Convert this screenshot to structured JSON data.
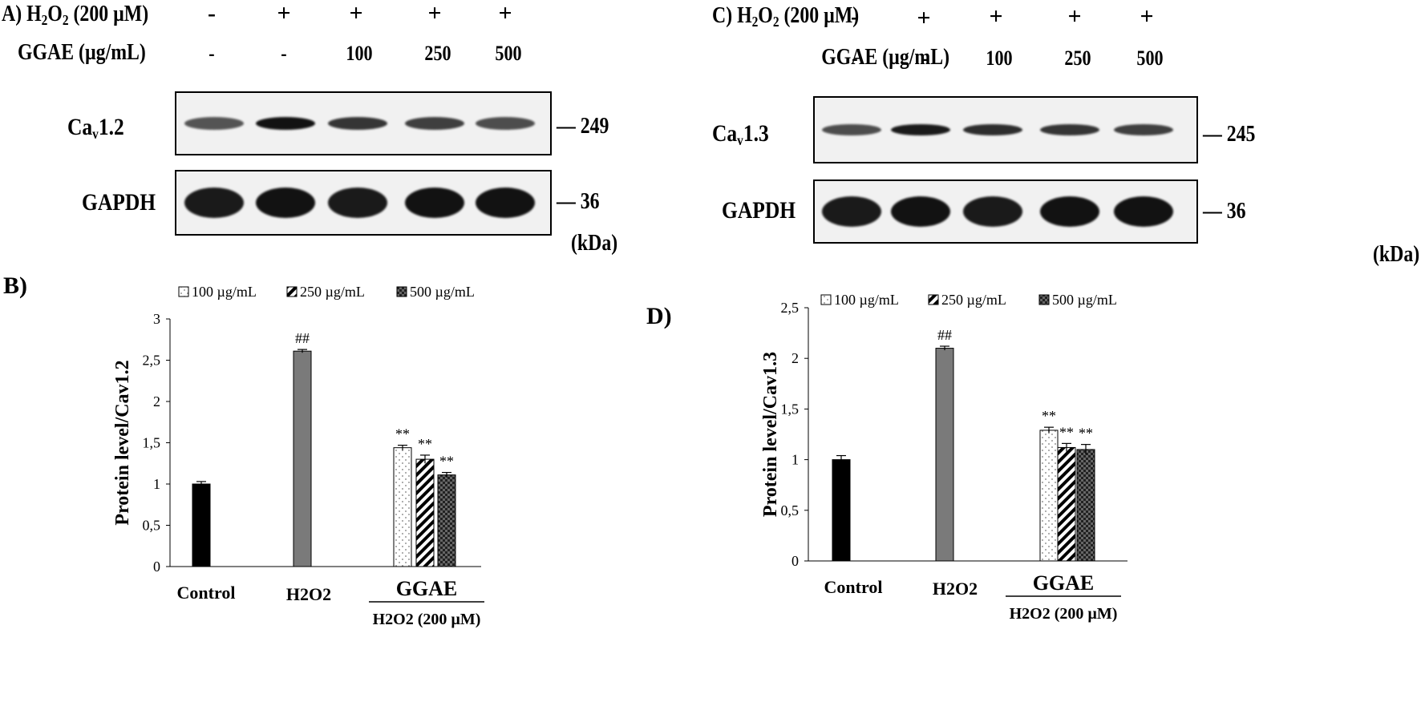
{
  "panels": [
    {
      "blot": {
        "panel_label": "A)",
        "treatment_label": "H2O2 (200 µM)",
        "h2o2_signs": [
          "-",
          "+",
          "+",
          "+",
          "+"
        ],
        "extract_label": "GGAE (µg/mL)",
        "extract_values": [
          "-",
          "-",
          "100",
          "250",
          "500"
        ],
        "target_label": "Cav1.2",
        "target_mw": "249",
        "loading_label": "GAPDH",
        "loading_mw": "36",
        "unit": "(kDa)",
        "target_band_intensity": [
          0.55,
          0.95,
          0.75,
          0.7,
          0.6
        ],
        "loading_band_intensity": [
          0.9,
          0.95,
          0.9,
          0.95,
          0.95
        ]
      },
      "chart": {
        "panel_label": "B)",
        "legend": [
          "100 µg/mL",
          "250 µg/mL",
          "500 µg/mL"
        ],
        "group_label": "GGAE",
        "group_sublabel": "H2O2 (200 µM)"
      }
    },
    {
      "blot": {
        "panel_label": "C)",
        "treatment_label": "H2O2 (200 µM)",
        "h2o2_signs": [
          "-",
          "+",
          "+",
          "+",
          "+"
        ],
        "extract_label": "GGAE (µg/mL)",
        "extract_values": [
          "-",
          "-",
          "100",
          "250",
          "500"
        ],
        "target_label": "Cav1.3",
        "target_mw": "245",
        "loading_label": "GAPDH",
        "loading_mw": "36",
        "unit": "(kDa)",
        "target_band_intensity": [
          0.6,
          0.9,
          0.8,
          0.75,
          0.7
        ],
        "loading_band_intensity": [
          0.9,
          0.95,
          0.9,
          0.95,
          0.95
        ]
      },
      "chart": {
        "panel_label": "D)",
        "legend": [
          "100 µg/mL",
          "250 µg/mL",
          "500 µg/mL"
        ],
        "group_label": "GGAE",
        "group_sublabel": "H2O2 (200 µM)"
      }
    }
  ],
  "chart_data": [
    {
      "type": "bar",
      "ylabel": "Protein level/Cav1.2",
      "ylim": [
        0,
        3
      ],
      "yticks": [
        "0",
        "0,5",
        "1",
        "1,5",
        "2",
        "2,5",
        "3"
      ],
      "categories": [
        "Control",
        "H2O2",
        "GGAE 100 µg/mL",
        "GGAE 250 µg/mL",
        "GGAE 500 µg/mL"
      ],
      "xlabels": [
        "Control",
        "H2O2"
      ],
      "values": [
        1.0,
        2.61,
        1.44,
        1.3,
        1.11
      ],
      "errors": [
        0.03,
        0.02,
        0.03,
        0.05,
        0.03
      ],
      "annotations": [
        "",
        "##",
        "**",
        "**",
        "**"
      ],
      "fills": [
        "black",
        "gray",
        "dotted",
        "hatched",
        "checkered"
      ]
    },
    {
      "type": "bar",
      "ylabel": "Protein level/Cav1.3",
      "ylim": [
        0,
        2.5
      ],
      "yticks": [
        "0",
        "0,5",
        "1",
        "1,5",
        "2",
        "2,5"
      ],
      "categories": [
        "Control",
        "H2O2",
        "GGAE 100 µg/mL",
        "GGAE 250 µg/mL",
        "GGAE 500 µg/mL"
      ],
      "xlabels": [
        "Control",
        "H2O2"
      ],
      "values": [
        1.0,
        2.1,
        1.29,
        1.12,
        1.1
      ],
      "errors": [
        0.04,
        0.02,
        0.03,
        0.04,
        0.05
      ],
      "annotations": [
        "",
        "##",
        "**",
        "**",
        "**"
      ],
      "fills": [
        "black",
        "gray",
        "dotted",
        "hatched",
        "checkered"
      ]
    }
  ]
}
